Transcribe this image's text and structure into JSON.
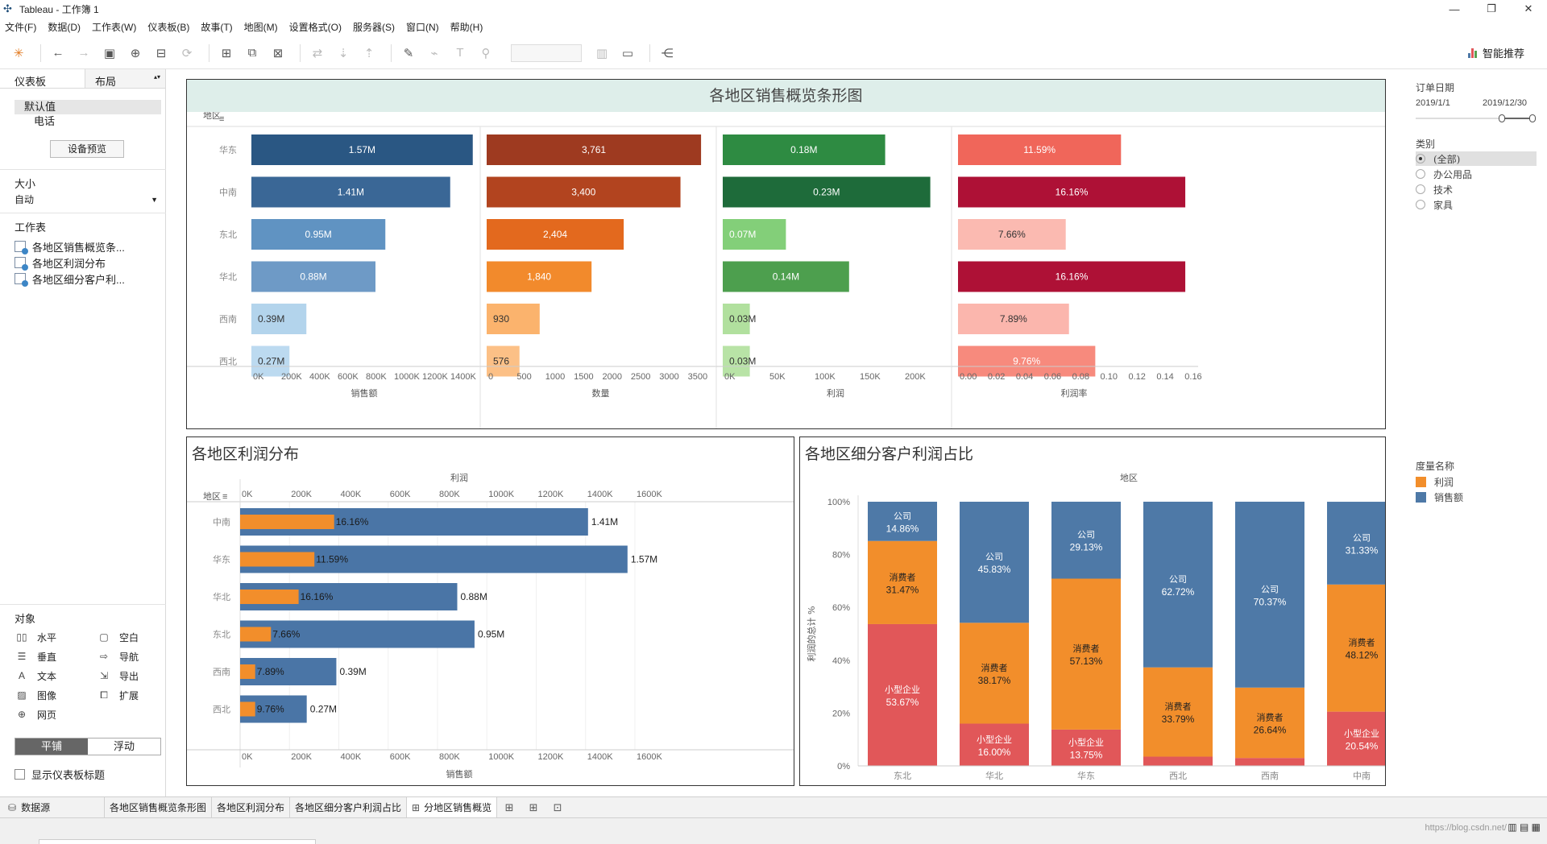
{
  "window": {
    "title": "Tableau - 工作簿 1"
  },
  "menu": [
    "文件(F)",
    "数据(D)",
    "工作表(W)",
    "仪表板(B)",
    "故事(T)",
    "地图(M)",
    "设置格式(O)",
    "服务器(S)",
    "窗口(N)",
    "帮助(H)"
  ],
  "toolbar": {
    "smart_label": "智能推荐"
  },
  "left_panel": {
    "tab_dashboard": "仪表板",
    "tab_layout": "布局",
    "devices": [
      "默认值",
      "电话"
    ],
    "device_preview": "设备预览",
    "size_heading": "大小",
    "size_value": "自动",
    "sheets_heading": "工作表",
    "sheets": [
      "各地区销售概览条...",
      "各地区利润分布",
      "各地区细分客户利..."
    ],
    "objects_heading": "对象",
    "objects": [
      {
        "label": "水平",
        "icon": "horizontal-icon"
      },
      {
        "label": "空白",
        "icon": "blank-icon"
      },
      {
        "label": "垂直",
        "icon": "vertical-icon"
      },
      {
        "label": "导航",
        "icon": "navigation-icon"
      },
      {
        "label": "文本",
        "icon": "text-icon"
      },
      {
        "label": "导出",
        "icon": "export-icon"
      },
      {
        "label": "图像",
        "icon": "image-icon"
      },
      {
        "label": "扩展",
        "icon": "extension-icon"
      },
      {
        "label": "网页",
        "icon": "webpage-icon"
      }
    ],
    "mode_tiled": "平铺",
    "mode_floating": "浮动",
    "show_title": "显示仪表板标题"
  },
  "chart1": {
    "title": "各地区销售概览条形图",
    "row_header": "地区",
    "regions": [
      "华东",
      "中南",
      "东北",
      "华北",
      "西南",
      "西北"
    ],
    "columns": [
      {
        "axis_title": "销售额",
        "ticks": [
          "0K",
          "200K",
          "400K",
          "600K",
          "800K",
          "1000K",
          "1200K",
          "1400K"
        ],
        "max": 1600000,
        "values": [
          1570000,
          1410000,
          950000,
          880000,
          390000,
          270000
        ],
        "labels": [
          "1.57M",
          "1.41M",
          "0.95M",
          "0.88M",
          "0.39M",
          "0.27M"
        ],
        "colors": [
          "#2a5783",
          "#3a6796",
          "#6093c2",
          "#6e9ac6",
          "#b3d4ec",
          "#bcdaf0"
        ]
      },
      {
        "axis_title": "数量",
        "ticks": [
          "0",
          "500",
          "1000",
          "1500",
          "2000",
          "2500",
          "3000",
          "3500"
        ],
        "max": 4000,
        "values": [
          3761,
          3400,
          2404,
          1840,
          930,
          576
        ],
        "labels": [
          "3,761",
          "3,400",
          "2,404",
          "1,840",
          "930",
          "576"
        ],
        "colors": [
          "#9e3a20",
          "#b2441f",
          "#e3691e",
          "#f28a2c",
          "#fbb36d",
          "#fcc086"
        ]
      },
      {
        "axis_title": "利润",
        "ticks": [
          "0K",
          "50K",
          "100K",
          "150K",
          "200K"
        ],
        "max": 250000,
        "values": [
          180000,
          230000,
          70000,
          140000,
          30000,
          30000
        ],
        "labels": [
          "0.18M",
          "0.23M",
          "0.07M",
          "0.14M",
          "0.03M",
          "0.03M"
        ],
        "colors": [
          "#2e8b42",
          "#1e6b3a",
          "#83cf79",
          "#4d9f4e",
          "#b1e09e",
          "#b8e3a6"
        ]
      },
      {
        "axis_title": "利润率",
        "ticks": [
          "0.00",
          "0.02",
          "0.04",
          "0.06",
          "0.08",
          "0.10",
          "0.12",
          "0.14",
          "0.16"
        ],
        "max": 0.165,
        "values": [
          0.1159,
          0.1616,
          0.0766,
          0.1616,
          0.0789,
          0.0976
        ],
        "labels": [
          "11.59%",
          "16.16%",
          "7.66%",
          "16.16%",
          "7.89%",
          "9.76%"
        ],
        "colors": [
          "#f0665a",
          "#ae1136",
          "#fbbab1",
          "#ae1136",
          "#fbb6ad",
          "#f78a7d"
        ]
      }
    ]
  },
  "chart2": {
    "title": "各地区利润分布",
    "top_axis_title": "利润",
    "bottom_axis_title": "销售额",
    "row_header": "地区",
    "ticks": [
      "0K",
      "200K",
      "400K",
      "600K",
      "800K",
      "1000K",
      "1200K",
      "1400K",
      "1600K"
    ],
    "max": 1700000,
    "regions": [
      "中南",
      "华东",
      "华北",
      "东北",
      "西南",
      "西北"
    ],
    "sales": [
      1410000,
      1570000,
      880000,
      950000,
      390000,
      270000
    ],
    "sales_labels": [
      "1.41M",
      "1.57M",
      "0.88M",
      "0.95M",
      "0.39M",
      "0.27M"
    ],
    "profit": [
      230000,
      180000,
      140000,
      70000,
      30000,
      30000
    ],
    "margin_labels": [
      "16.16%",
      "11.59%",
      "16.16%",
      "7.66%",
      "7.89%",
      "9.76%"
    ],
    "sales_color": "#4a75a6",
    "profit_color": "#f28e2b"
  },
  "chart3": {
    "title": "各地区细分客户利润占比",
    "top_axis_title": "地区",
    "y_axis_title": "利润的总计 %",
    "y_ticks": [
      "100%",
      "80%",
      "60%",
      "40%",
      "20%",
      "0%"
    ],
    "regions": [
      "东北",
      "华北",
      "华东",
      "西北",
      "西南",
      "中南"
    ],
    "segments": [
      {
        "name": "小型企业",
        "color": "#e15759",
        "values": [
          53.67,
          16.0,
          13.75,
          3.5,
          3.0,
          20.54
        ]
      },
      {
        "name": "消费者",
        "color": "#f28e2b",
        "values": [
          31.47,
          38.17,
          57.13,
          33.79,
          26.64,
          48.12
        ]
      },
      {
        "name": "公司",
        "color": "#4e79a7",
        "values": [
          14.86,
          45.83,
          29.13,
          62.72,
          70.37,
          31.33
        ]
      }
    ],
    "labels": [
      [
        "小型企业\n53.67%",
        "消费者\n31.47%",
        "公司\n14.86%"
      ],
      [
        "小型企业\n16.00%",
        "消费者\n38.17%",
        "公司\n45.83%"
      ],
      [
        "小型企业\n13.75%",
        "消费者\n57.13%",
        "公司\n29.13%"
      ],
      [
        "",
        "消费者\n33.79%",
        "公司\n62.72%"
      ],
      [
        "",
        "消费者\n26.64%",
        "公司\n70.37%"
      ],
      [
        "小型企业\n20.54%",
        "消费者\n48.12%",
        "公司\n31.33%"
      ]
    ]
  },
  "chart_data": [
    {
      "type": "bar",
      "title": "各地区销售概览条形图",
      "categories": [
        "华东",
        "中南",
        "东北",
        "华北",
        "西南",
        "西北"
      ],
      "series": [
        {
          "name": "销售额",
          "values": [
            1570000,
            1410000,
            950000,
            880000,
            390000,
            270000
          ]
        },
        {
          "name": "数量",
          "values": [
            3761,
            3400,
            2404,
            1840,
            930,
            576
          ]
        },
        {
          "name": "利润",
          "values": [
            180000,
            230000,
            70000,
            140000,
            30000,
            30000
          ]
        },
        {
          "name": "利润率",
          "values": [
            0.1159,
            0.1616,
            0.0766,
            0.1616,
            0.0789,
            0.0976
          ]
        }
      ]
    },
    {
      "type": "bar",
      "title": "各地区利润分布",
      "categories": [
        "中南",
        "华东",
        "华北",
        "东北",
        "西南",
        "西北"
      ],
      "series": [
        {
          "name": "销售额",
          "values": [
            1410000,
            1570000,
            880000,
            950000,
            390000,
            270000
          ]
        },
        {
          "name": "利润",
          "values": [
            230000,
            180000,
            140000,
            70000,
            30000,
            30000
          ]
        }
      ],
      "xlabel": "销售额",
      "ylabel": "地区",
      "xlim": [
        0,
        1700000
      ]
    },
    {
      "type": "bar",
      "title": "各地区细分客户利润占比",
      "categories": [
        "东北",
        "华北",
        "华东",
        "西北",
        "西南",
        "中南"
      ],
      "series": [
        {
          "name": "小型企业",
          "values": [
            53.67,
            16.0,
            13.75,
            3.5,
            3.0,
            20.54
          ]
        },
        {
          "name": "消费者",
          "values": [
            31.47,
            38.17,
            57.13,
            33.79,
            26.64,
            48.12
          ]
        },
        {
          "name": "公司",
          "values": [
            14.86,
            45.83,
            29.13,
            62.72,
            70.37,
            31.33
          ]
        }
      ],
      "ylabel": "利润的总计 %",
      "ylim": [
        0,
        100
      ]
    }
  ],
  "filters": {
    "date_title": "订单日期",
    "date_start": "2019/1/1",
    "date_end": "2019/12/30",
    "date_range_fraction": [
      0.72,
      0.98
    ],
    "category_title": "类别",
    "categories": [
      "(全部)",
      "办公用品",
      "技术",
      "家具"
    ],
    "legend_title": "度量名称",
    "legend": [
      {
        "label": "利润",
        "color": "#f28e2b"
      },
      {
        "label": "销售额",
        "color": "#4e79a7"
      }
    ]
  },
  "sheet_tabs": {
    "datasource": "数据源",
    "tabs": [
      "各地区销售概览条形图",
      "各地区利润分布",
      "各地区细分客户利润占比",
      "分地区销售概览"
    ]
  },
  "status": {
    "watermark": "https://blog.csdn.net/"
  }
}
